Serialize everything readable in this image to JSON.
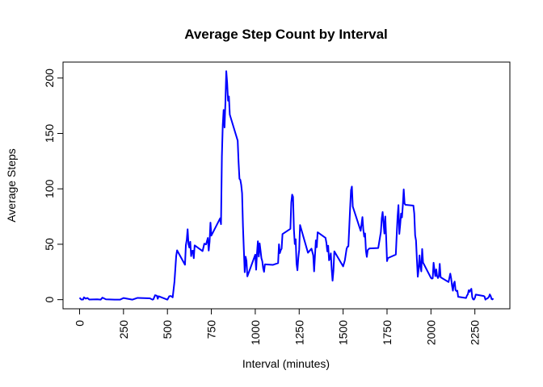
{
  "chart_data": {
    "type": "line",
    "title": "Average Step Count by Interval",
    "x_label": "Interval (minutes)",
    "y_label": "Average Steps",
    "color": "#0000ff",
    "x": [
      0,
      10,
      20,
      25,
      35,
      45,
      55,
      100,
      120,
      130,
      150,
      200,
      230,
      250,
      300,
      330,
      400,
      415,
      420,
      430,
      440,
      445,
      450,
      500,
      510,
      520,
      530,
      540,
      550,
      555,
      600,
      605,
      610,
      615,
      620,
      625,
      630,
      635,
      640,
      645,
      650,
      655,
      700,
      710,
      720,
      730,
      735,
      740,
      745,
      750,
      800,
      805,
      810,
      815,
      820,
      825,
      830,
      835,
      840,
      845,
      850,
      855,
      900,
      905,
      910,
      915,
      920,
      925,
      930,
      935,
      940,
      945,
      950,
      955,
      1000,
      1005,
      1010,
      1015,
      1020,
      1025,
      1030,
      1035,
      1040,
      1045,
      1050,
      1055,
      1100,
      1130,
      1135,
      1140,
      1145,
      1150,
      1155,
      1200,
      1205,
      1210,
      1215,
      1220,
      1225,
      1230,
      1235,
      1240,
      1245,
      1250,
      1255,
      1300,
      1320,
      1330,
      1335,
      1340,
      1345,
      1350,
      1355,
      1400,
      1405,
      1410,
      1415,
      1420,
      1425,
      1430,
      1435,
      1440,
      1445,
      1450,
      1500,
      1510,
      1520,
      1525,
      1530,
      1535,
      1540,
      1545,
      1550,
      1555,
      1600,
      1610,
      1615,
      1620,
      1625,
      1630,
      1635,
      1640,
      1645,
      1650,
      1700,
      1715,
      1720,
      1725,
      1730,
      1735,
      1740,
      1745,
      1750,
      1755,
      1800,
      1805,
      1810,
      1815,
      1820,
      1825,
      1830,
      1835,
      1840,
      1845,
      1850,
      1855,
      1900,
      1905,
      1910,
      1915,
      1920,
      1925,
      1930,
      1935,
      1940,
      1945,
      1950,
      1955,
      2000,
      2005,
      2010,
      2015,
      2020,
      2025,
      2030,
      2035,
      2040,
      2045,
      2050,
      2055,
      2100,
      2110,
      2115,
      2120,
      2125,
      2130,
      2135,
      2140,
      2145,
      2150,
      2155,
      2200,
      2205,
      2210,
      2215,
      2220,
      2225,
      2230,
      2235,
      2240,
      2245,
      2250,
      2255,
      2300,
      2305,
      2310,
      2315,
      2320,
      2325,
      2330,
      2335,
      2340,
      2345,
      2350,
      2355
    ],
    "values": [
      1.7,
      0.1,
      0.1,
      2.1,
      0.9,
      1.5,
      0.1,
      0.3,
      0,
      1.8,
      0.3,
      0,
      0,
      1.5,
      0,
      1.6,
      1.2,
      0,
      0.3,
      4,
      3.5,
      0.8,
      3.1,
      0,
      3,
      3.3,
      2.1,
      16,
      39.5,
      44.5,
      31.5,
      49.3,
      53.8,
      63.5,
      49.9,
      47,
      52.2,
      39.3,
      44,
      44.2,
      37.4,
      49,
      43.8,
      50.5,
      49.9,
      55.7,
      44.3,
      52.3,
      69.5,
      57.8,
      73.4,
      68.1,
      129.4,
      157.5,
      171.2,
      155.4,
      177.3,
      206.2,
      195.9,
      179.6,
      183.4,
      167,
      143.5,
      124,
      109.1,
      108.1,
      103.7,
      96,
      66.2,
      45.2,
      24.8,
      38.8,
      35,
      21,
      40.6,
      27,
      42.4,
      52.7,
      38.9,
      50.8,
      44.3,
      37.4,
      34.7,
      28.3,
      25.1,
      31.9,
      31.4,
      33,
      50,
      42,
      44.6,
      46,
      59.2,
      63.9,
      87.7,
      94.8,
      92.8,
      63.4,
      50.2,
      54.5,
      32.4,
      26.5,
      37.7,
      45,
      67.3,
      42.3,
      46,
      40,
      25.5,
      40,
      53.5,
      47.3,
      60.8,
      55.7,
      51.2,
      43.6,
      48.7,
      35.5,
      37.5,
      41.8,
      27.5,
      17.1,
      26.1,
      43.6,
      30,
      35.5,
      46,
      47.8,
      48.1,
      65.3,
      82.9,
      98.7,
      102.1,
      84,
      62.1,
      74.5,
      63.2,
      56.9,
      59.8,
      43.9,
      38.6,
      44.7,
      45.5,
      46.2,
      46.6,
      61.2,
      73.4,
      79.1,
      68.9,
      59.7,
      75.1,
      56.5,
      34.8,
      37.5,
      40.7,
      58,
      74.7,
      85.3,
      59.3,
      67.8,
      77.7,
      74.2,
      85.3,
      99.5,
      86.6,
      85.6,
      84.9,
      77.8,
      58,
      53.4,
      36.3,
      20.7,
      27.4,
      40,
      30.2,
      25.5,
      45.7,
      33.5,
      19.6,
      19,
      19.3,
      33.3,
      26.8,
      21.2,
      27.3,
      21.3,
      19.5,
      21.3,
      32.3,
      20.2,
      15.9,
      23.5,
      19.2,
      12.5,
      8.1,
      14.7,
      16.3,
      8.7,
      7.8,
      8.1,
      2.6,
      1.5,
      3.7,
      4.8,
      8.5,
      7.1,
      8.7,
      9.8,
      2.2,
      0.3,
      0.1,
      1.6,
      4.6,
      3.3,
      2.8,
      0,
      0.8,
      1,
      1.6,
      2.6,
      4.7,
      3.3,
      0.6,
      0.2,
      1.1
    ],
    "xlim": [
      -94.2,
      2449.2
    ],
    "ylim": [
      -8.25,
      214.4
    ],
    "xticks": [
      0,
      250,
      500,
      750,
      1000,
      1250,
      1500,
      1750,
      2000,
      2250
    ],
    "yticks": [
      0,
      50,
      100,
      150,
      200
    ]
  }
}
